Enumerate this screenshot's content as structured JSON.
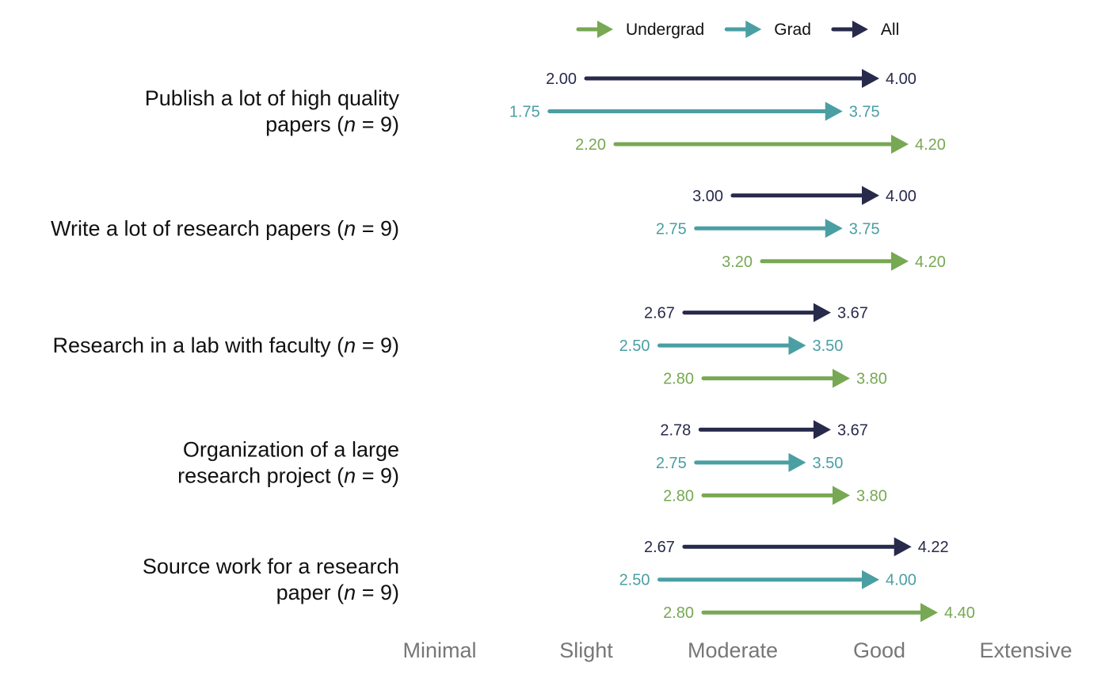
{
  "chart_data": {
    "type": "arrow",
    "xlim": [
      1,
      5
    ],
    "x_ticks": [
      {
        "value": 1,
        "label": "Minimal"
      },
      {
        "value": 2,
        "label": "Slight"
      },
      {
        "value": 3,
        "label": "Moderate"
      },
      {
        "value": 4,
        "label": "Good"
      },
      {
        "value": 5,
        "label": "Extensive"
      }
    ],
    "legend": {
      "position": "top",
      "entries": [
        {
          "key": "undergrad",
          "label": "Undergrad"
        },
        {
          "key": "grad",
          "label": "Grad"
        },
        {
          "key": "all",
          "label": "All"
        }
      ]
    },
    "colors": {
      "undergrad": "#77A853",
      "grad": "#4A9FA3",
      "all": "#272A4B"
    },
    "series_order": [
      "all",
      "grad",
      "undergrad"
    ],
    "categories": [
      {
        "lines": [
          "Publish a lot of high quality",
          "papers (n = 9)"
        ],
        "values": {
          "all": {
            "start": 2.0,
            "end": 4.0,
            "start_label": "2.00",
            "end_label": "4.00"
          },
          "grad": {
            "start": 1.75,
            "end": 3.75,
            "start_label": "1.75",
            "end_label": "3.75"
          },
          "undergrad": {
            "start": 2.2,
            "end": 4.2,
            "start_label": "2.20",
            "end_label": "4.20"
          }
        }
      },
      {
        "lines": [
          "Write a lot of research papers (n = 9)"
        ],
        "values": {
          "all": {
            "start": 3.0,
            "end": 4.0,
            "start_label": "3.00",
            "end_label": "4.00"
          },
          "grad": {
            "start": 2.75,
            "end": 3.75,
            "start_label": "2.75",
            "end_label": "3.75"
          },
          "undergrad": {
            "start": 3.2,
            "end": 4.2,
            "start_label": "3.20",
            "end_label": "4.20"
          }
        }
      },
      {
        "lines": [
          "Research in a lab with faculty (n = 9)"
        ],
        "values": {
          "all": {
            "start": 2.67,
            "end": 3.67,
            "start_label": "2.67",
            "end_label": "3.67"
          },
          "grad": {
            "start": 2.5,
            "end": 3.5,
            "start_label": "2.50",
            "end_label": "3.50"
          },
          "undergrad": {
            "start": 2.8,
            "end": 3.8,
            "start_label": "2.80",
            "end_label": "3.80"
          }
        }
      },
      {
        "lines": [
          "Organization of a large",
          "research project (n = 9)"
        ],
        "values": {
          "all": {
            "start": 2.78,
            "end": 3.67,
            "start_label": "2.78",
            "end_label": "3.67"
          },
          "grad": {
            "start": 2.75,
            "end": 3.5,
            "start_label": "2.75",
            "end_label": "3.50"
          },
          "undergrad": {
            "start": 2.8,
            "end": 3.8,
            "start_label": "2.80",
            "end_label": "3.80"
          }
        }
      },
      {
        "lines": [
          "Source work for a research",
          "paper (n = 9)"
        ],
        "values": {
          "all": {
            "start": 2.67,
            "end": 4.22,
            "start_label": "2.67",
            "end_label": "4.22"
          },
          "grad": {
            "start": 2.5,
            "end": 4.0,
            "start_label": "2.50",
            "end_label": "4.00"
          },
          "undergrad": {
            "start": 2.8,
            "end": 4.4,
            "start_label": "2.80",
            "end_label": "4.40"
          }
        }
      }
    ]
  }
}
